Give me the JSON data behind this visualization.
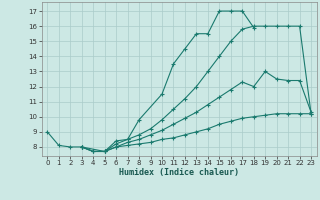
{
  "xlabel": "Humidex (Indice chaleur)",
  "bg_color": "#cce8e4",
  "grid_color": "#aaccca",
  "line_color": "#1a7a6e",
  "xlim": [
    -0.5,
    23.5
  ],
  "ylim": [
    7.4,
    17.6
  ],
  "xticks": [
    0,
    1,
    2,
    3,
    4,
    5,
    6,
    7,
    8,
    9,
    10,
    11,
    12,
    13,
    14,
    15,
    16,
    17,
    18,
    19,
    20,
    21,
    22,
    23
  ],
  "yticks": [
    8,
    9,
    10,
    11,
    12,
    13,
    14,
    15,
    16,
    17
  ],
  "curve1_x": [
    0,
    1,
    2,
    3,
    4,
    5,
    6,
    7,
    8,
    10,
    11,
    12,
    13,
    14,
    15,
    16,
    17,
    18
  ],
  "curve1_y": [
    9.0,
    8.1,
    8.0,
    8.0,
    7.7,
    7.7,
    8.4,
    8.5,
    9.8,
    11.5,
    13.5,
    14.5,
    15.5,
    15.5,
    17.0,
    17.0,
    17.0,
    15.9
  ],
  "curve2_x": [
    3,
    5,
    6,
    7,
    8,
    9,
    10,
    11,
    12,
    13,
    14,
    15,
    16,
    17,
    18,
    19,
    20,
    21,
    22,
    23
  ],
  "curve2_y": [
    8.0,
    7.7,
    8.2,
    8.5,
    8.8,
    9.2,
    9.8,
    10.5,
    11.2,
    12.0,
    13.0,
    14.0,
    15.0,
    15.8,
    16.0,
    16.0,
    16.0,
    16.0,
    16.0,
    10.2
  ],
  "curve3_x": [
    3,
    4,
    5,
    6,
    7,
    8,
    9,
    10,
    11,
    12,
    13,
    14,
    15,
    16,
    17,
    18,
    19,
    20,
    21,
    22,
    23
  ],
  "curve3_y": [
    8.0,
    7.7,
    7.7,
    8.0,
    8.3,
    8.5,
    8.8,
    9.1,
    9.5,
    9.9,
    10.3,
    10.8,
    11.3,
    11.8,
    12.3,
    12.0,
    13.0,
    12.5,
    12.4,
    12.4,
    10.3
  ],
  "curve4_x": [
    3,
    4,
    5,
    6,
    7,
    8,
    9,
    10,
    11,
    12,
    13,
    14,
    15,
    16,
    17,
    18,
    19,
    20,
    21,
    22,
    23
  ],
  "curve4_y": [
    8.0,
    7.7,
    7.7,
    8.0,
    8.1,
    8.2,
    8.3,
    8.5,
    8.6,
    8.8,
    9.0,
    9.2,
    9.5,
    9.7,
    9.9,
    10.0,
    10.1,
    10.2,
    10.2,
    10.2,
    10.2
  ]
}
